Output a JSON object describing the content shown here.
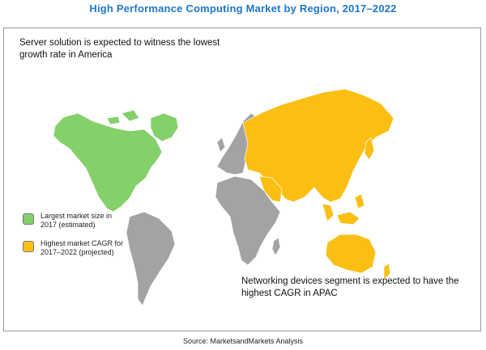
{
  "title": "High Performance Computing Market by Region, 2017–2022",
  "callouts": {
    "top": "Server solution is expected to witness the lowest growth rate in America",
    "bottom": "Networking devices segment is expected to have the highest CAGR in APAC"
  },
  "legend": [
    {
      "label": "Largest market size in 2017 (estimated)",
      "color": "#84d06a"
    },
    {
      "label": "Highest market CAGR for 2017–2022 (projected)",
      "color": "#fbbf14"
    }
  ],
  "colors": {
    "other_regions": "#a3a3a3"
  },
  "source": "Source: MarketsandMarkets Analysis"
}
